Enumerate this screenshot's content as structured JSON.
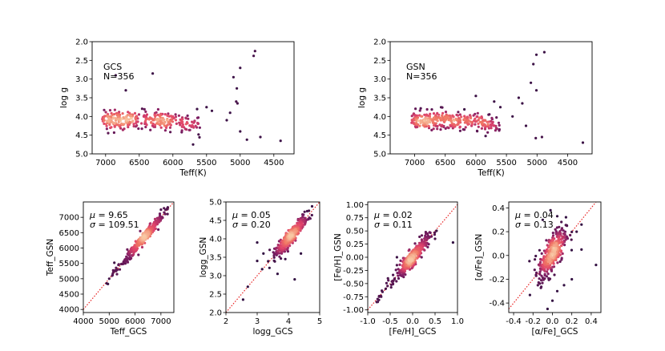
{
  "chart_data": [
    {
      "type": "scatter",
      "id": "teff-logg-gcs",
      "title": "",
      "xlabel": "Teff(K)",
      "ylabel": "log g",
      "xlim": [
        7200,
        4200
      ],
      "ylim": [
        5.0,
        2.0
      ],
      "xticks": [
        7000,
        6500,
        6000,
        5500,
        5000,
        4500
      ],
      "yticks": [
        2.0,
        2.5,
        3.0,
        3.5,
        4.0,
        4.5,
        5.0
      ],
      "annotation": [
        "GCS",
        "N=356"
      ],
      "outliers": [
        [
          4780,
          2.25
        ],
        [
          4800,
          2.38
        ],
        [
          5000,
          2.7
        ],
        [
          5100,
          2.95
        ],
        [
          5050,
          3.25
        ],
        [
          5060,
          3.6
        ],
        [
          5040,
          3.65
        ],
        [
          5420,
          3.85
        ],
        [
          5500,
          3.75
        ],
        [
          5000,
          4.4
        ],
        [
          4700,
          4.55
        ],
        [
          4400,
          4.65
        ],
        [
          5700,
          4.75
        ],
        [
          4900,
          4.62
        ],
        [
          6850,
          2.9
        ],
        [
          6300,
          2.85
        ],
        [
          6700,
          3.3
        ],
        [
          5150,
          3.9
        ],
        [
          5200,
          4.1
        ],
        [
          5600,
          4.3
        ]
      ]
    },
    {
      "type": "scatter",
      "id": "teff-logg-gsn",
      "title": "",
      "xlabel": "Teff(K)",
      "ylabel": "log g",
      "xlim": [
        7400,
        4100
      ],
      "ylim": [
        5.0,
        2.0
      ],
      "xticks": [
        7000,
        6500,
        6000,
        5500,
        5000,
        4500
      ],
      "yticks": [
        2.0,
        2.5,
        3.0,
        3.5,
        4.0,
        4.5,
        5.0
      ],
      "annotation": [
        "GSN",
        "N=356"
      ],
      "outliers": [
        [
          4880,
          2.28
        ],
        [
          5010,
          2.35
        ],
        [
          5060,
          2.6
        ],
        [
          5100,
          3.1
        ],
        [
          5010,
          3.3
        ],
        [
          5300,
          3.5
        ],
        [
          5240,
          3.65
        ],
        [
          5180,
          4.25
        ],
        [
          5020,
          4.58
        ],
        [
          4920,
          4.55
        ],
        [
          4250,
          4.7
        ],
        [
          5400,
          4.0
        ],
        [
          6000,
          3.45
        ],
        [
          5700,
          3.6
        ],
        [
          5600,
          3.75
        ]
      ]
    },
    {
      "type": "scatter",
      "id": "teff-comparison",
      "xlabel": "Teff_GCS",
      "ylabel": "Teff_GSN",
      "xlim": [
        4000,
        7500
      ],
      "ylim": [
        3900,
        7500
      ],
      "xticks": [
        4000,
        5000,
        6000,
        7000
      ],
      "yticks": [
        4000,
        4500,
        5000,
        5500,
        6000,
        6500,
        7000
      ],
      "mu": "9.65",
      "sigma": "109.51",
      "scatter_sd": 110,
      "cluster_center": [
        6350,
        6350
      ],
      "cluster_spread": [
        380,
        380
      ],
      "tail_start": 4900,
      "outliers": [
        [
          5200,
          5520
        ],
        [
          5600,
          5620
        ],
        [
          5000,
          5000
        ],
        [
          4900,
          4850
        ],
        [
          5300,
          5150
        ],
        [
          6900,
          6600
        ],
        [
          7000,
          7250
        ],
        [
          6200,
          6550
        ],
        [
          5700,
          5950
        ]
      ]
    },
    {
      "type": "scatter",
      "id": "logg-comparison",
      "xlabel": "logg_GCS",
      "ylabel": "logg_GSN",
      "xlim": [
        2,
        5
      ],
      "ylim": [
        2,
        5
      ],
      "xticks": [
        2,
        3,
        4,
        5
      ],
      "yticks": [
        2.0,
        2.5,
        3.0,
        3.5,
        4.0,
        4.5,
        5.0
      ],
      "mu": "0.05",
      "sigma": "0.20",
      "scatter_sd": 0.13,
      "cluster_center": [
        4.1,
        4.1
      ],
      "cluster_spread": [
        0.25,
        0.25
      ],
      "tail_start": 3.5,
      "outliers": [
        [
          2.55,
          2.35
        ],
        [
          2.7,
          2.7
        ],
        [
          3.0,
          3.4
        ],
        [
          3.2,
          3.6
        ],
        [
          3.4,
          3.7
        ],
        [
          3.55,
          3.6
        ],
        [
          3.65,
          3.05
        ],
        [
          3.9,
          3.45
        ],
        [
          4.4,
          3.6
        ],
        [
          4.6,
          4.75
        ],
        [
          4.7,
          4.55
        ],
        [
          3.0,
          3.9
        ],
        [
          4.2,
          2.9
        ]
      ]
    },
    {
      "type": "scatter",
      "id": "feh-comparison",
      "xlabel": "[Fe/H]_GCS",
      "ylabel": "[Fe/H]_GSN",
      "xlim": [
        -1.0,
        1.0
      ],
      "ylim": [
        -1.05,
        1.05
      ],
      "xticks": [
        -1.0,
        -0.5,
        0.0,
        0.5,
        1.0
      ],
      "yticks": [
        -1.0,
        -0.75,
        -0.5,
        -0.25,
        0.0,
        0.25,
        0.5,
        0.75,
        1.0
      ],
      "mu": "0.02",
      "sigma": "0.11",
      "scatter_sd": 0.1,
      "cluster_center": [
        0.0,
        0.0
      ],
      "cluster_spread": [
        0.18,
        0.18
      ],
      "tail_start": -0.8,
      "outliers": [
        [
          -0.8,
          -0.85
        ],
        [
          -0.6,
          -0.6
        ],
        [
          -0.55,
          -0.4
        ],
        [
          -0.35,
          0.0
        ],
        [
          0.5,
          0.35
        ],
        [
          0.9,
          0.28
        ],
        [
          -0.35,
          -0.15
        ],
        [
          0.3,
          0.45
        ],
        [
          -0.7,
          -0.75
        ]
      ]
    },
    {
      "type": "scatter",
      "id": "alpha-comparison",
      "xlabel": "[α/Fe]_GCS",
      "ylabel": "[α/Fe]_GSN",
      "xlim": [
        -0.45,
        0.5
      ],
      "ylim": [
        -0.48,
        0.45
      ],
      "xticks": [
        -0.4,
        -0.2,
        0.0,
        0.2,
        0.4
      ],
      "yticks": [
        -0.4,
        -0.2,
        0.0,
        0.2,
        0.4
      ],
      "mu": "0.04",
      "sigma": "0.13",
      "scatter_sd": 0.1,
      "cluster_center": [
        0.0,
        0.02
      ],
      "cluster_spread": [
        0.07,
        0.08
      ],
      "tail_start": -0.1,
      "outliers": [
        [
          -0.05,
          -0.45
        ],
        [
          0.0,
          -0.38
        ],
        [
          0.05,
          -0.3
        ],
        [
          -0.02,
          0.38
        ],
        [
          0.05,
          0.33
        ],
        [
          0.3,
          0.26
        ],
        [
          0.25,
          0.2
        ],
        [
          0.15,
          0.25
        ],
        [
          0.2,
          -0.2
        ],
        [
          0.12,
          -0.25
        ],
        [
          -0.15,
          -0.25
        ],
        [
          -0.1,
          0.3
        ],
        [
          0.45,
          -0.08
        ],
        [
          0.3,
          0.05
        ]
      ]
    }
  ],
  "colors": {
    "dense": "#f8c8a4",
    "mid": "#e0436b",
    "sparse": "#2a0f3e",
    "identity_line": "#e82121"
  }
}
